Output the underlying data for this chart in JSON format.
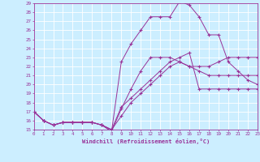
{
  "xlabel": "Windchill (Refroidissement éolien,°C)",
  "bg_color": "#cceeff",
  "line_color": "#993399",
  "grid_color": "#ffffff",
  "xmin": 0,
  "xmax": 23,
  "ymin": 15,
  "ymax": 29,
  "lines": [
    [
      0,
      17,
      1,
      16,
      2,
      15.5,
      3,
      15.8,
      4,
      15.8,
      5,
      15.8,
      6,
      15.8,
      7,
      15.5,
      8,
      14.8,
      9,
      17.3,
      10,
      19.5,
      11,
      21.5,
      12,
      23,
      13,
      23,
      14,
      23,
      15,
      22.5,
      16,
      22,
      17,
      21.5,
      18,
      21,
      19,
      21,
      20,
      21,
      21,
      21,
      22,
      21,
      23,
      21
    ],
    [
      0,
      17,
      1,
      16,
      2,
      15.5,
      3,
      15.8,
      4,
      15.8,
      5,
      15.8,
      6,
      15.8,
      7,
      15.5,
      8,
      15.0,
      9,
      16.5,
      10,
      18,
      11,
      19,
      12,
      20,
      13,
      21,
      14,
      22,
      15,
      22.5,
      16,
      22,
      17,
      22,
      18,
      22,
      19,
      22.5,
      20,
      23,
      21,
      23,
      22,
      23,
      23,
      23
    ],
    [
      0,
      17,
      1,
      16,
      2,
      15.5,
      3,
      15.8,
      4,
      15.8,
      5,
      15.8,
      6,
      15.8,
      7,
      15.5,
      8,
      14.8,
      9,
      22.5,
      10,
      24.5,
      11,
      26,
      12,
      27.5,
      13,
      27.5,
      14,
      27.5,
      15,
      29.2,
      16,
      28.8,
      17,
      27.5,
      18,
      25.5,
      19,
      25.5,
      20,
      22.5,
      21,
      21.5,
      22,
      20.5,
      23,
      20
    ],
    [
      0,
      17,
      1,
      16,
      2,
      15.5,
      3,
      15.8,
      4,
      15.8,
      5,
      15.8,
      6,
      15.8,
      7,
      15.5,
      8,
      15.0,
      9,
      17.5,
      10,
      18.5,
      11,
      19.5,
      12,
      20.5,
      13,
      21.5,
      14,
      22.5,
      15,
      23,
      16,
      23.5,
      17,
      19.5,
      18,
      19.5,
      19,
      19.5,
      20,
      19.5,
      21,
      19.5,
      22,
      19.5,
      23,
      19.5
    ]
  ]
}
